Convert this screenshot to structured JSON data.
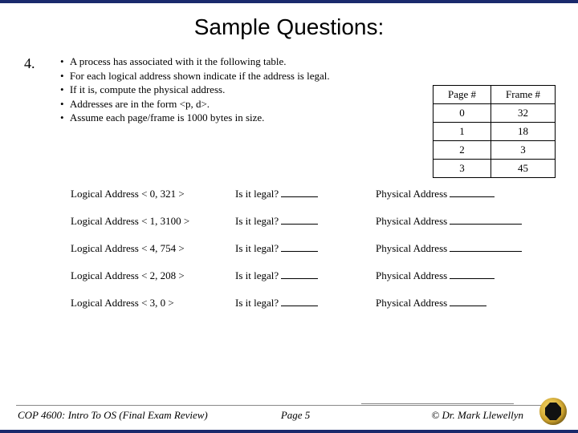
{
  "title": "Sample Questions:",
  "question_number": "4.",
  "bullets": [
    "A process has associated with it the following table.",
    "For each logical address shown indicate if the address is legal.",
    "If it is, compute the physical address.",
    "Addresses are in the form <p, d>.",
    "Assume each page/frame is 1000 bytes in size."
  ],
  "page_table": {
    "headers": [
      "Page #",
      "Frame #"
    ],
    "rows": [
      [
        "0",
        "32"
      ],
      [
        "1",
        "18"
      ],
      [
        "2",
        "3"
      ],
      [
        "3",
        "45"
      ]
    ]
  },
  "addresses": [
    {
      "addr": "Logical Address < 0, 321 >",
      "legal": "Is it legal?",
      "phys": "Physical Address",
      "blank": "blank-med"
    },
    {
      "addr": "Logical Address < 1, 3100 >",
      "legal": "Is it legal?",
      "phys": "Physical Address",
      "blank": "blank-long"
    },
    {
      "addr": "Logical Address < 4, 754 >",
      "legal": "Is it legal?",
      "phys": "Physical Address",
      "blank": "blank-long"
    },
    {
      "addr": "Logical Address < 2, 208 >",
      "legal": "Is it legal?",
      "phys": "Physical Address",
      "blank": "blank-med"
    },
    {
      "addr": "Logical Address < 3, 0 >",
      "legal": "Is it legal?",
      "phys": "Physical Address",
      "blank": "blank-short"
    }
  ],
  "footer": {
    "course": "COP 4600: Intro To OS  (Final Exam Review)",
    "page": "Page 5",
    "author": "© Dr. Mark Llewellyn"
  }
}
